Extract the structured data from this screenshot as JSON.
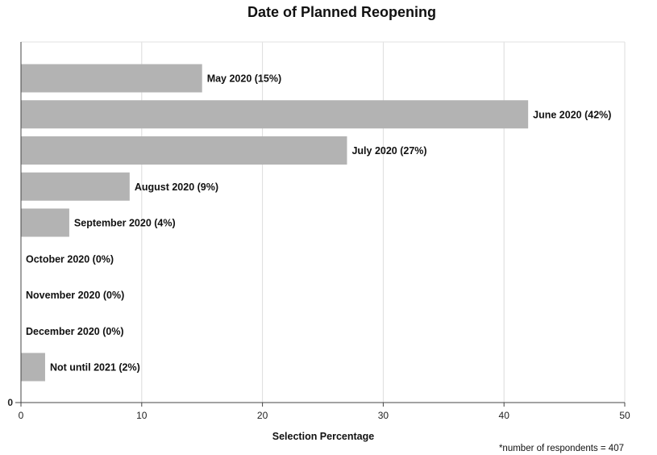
{
  "chart_data": {
    "type": "bar",
    "orientation": "horizontal",
    "title": "Date of Planned Reopening",
    "xlabel": "Selection Percentage",
    "ylabel": "",
    "xlim": [
      0,
      50
    ],
    "x_ticks": [
      0,
      10,
      20,
      30,
      40,
      50
    ],
    "y_ticks": [
      0
    ],
    "grid": "vertical",
    "bar_color": "#b3b3b3",
    "categories": [
      "May 2020",
      "June 2020",
      "July 2020",
      "August 2020",
      "September 2020",
      "October 2020",
      "November 2020",
      "December 2020",
      "Not until 2021"
    ],
    "values": [
      15,
      42,
      27,
      9,
      4,
      0,
      0,
      0,
      2
    ],
    "labels": [
      "May 2020 (15%)",
      "June 2020 (42%)",
      "July 2020 (27%)",
      "August 2020 (9%)",
      "September 2020 (4%)",
      "October 2020 (0%)",
      "November 2020 (0%)",
      "December 2020 (0%)",
      "Not until 2021 (2%)"
    ],
    "footnote": "*number of respondents = 407"
  }
}
